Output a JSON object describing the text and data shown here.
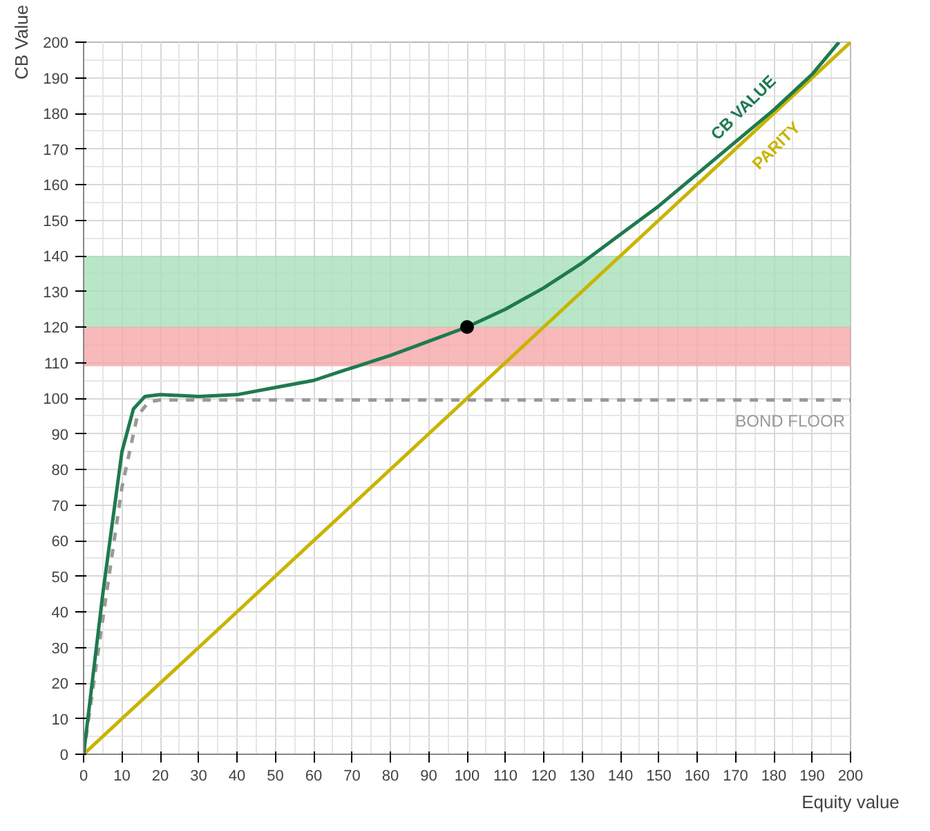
{
  "chart_data": {
    "type": "line",
    "xlabel": "Equity value",
    "ylabel": "CB Value",
    "xlim": [
      0,
      200
    ],
    "ylim": [
      0,
      200
    ],
    "xticks": [
      0,
      10,
      20,
      30,
      40,
      50,
      60,
      70,
      80,
      90,
      100,
      110,
      120,
      130,
      140,
      150,
      160,
      170,
      180,
      190,
      200
    ],
    "yticks": [
      0,
      10,
      20,
      30,
      40,
      50,
      60,
      70,
      80,
      90,
      100,
      110,
      120,
      130,
      140,
      150,
      160,
      170,
      180,
      190,
      200
    ],
    "grid": true,
    "series": [
      {
        "name": "PARITY",
        "color": "#c8b400",
        "x": [
          0,
          200
        ],
        "values": [
          0,
          200
        ]
      },
      {
        "name": "BOND FLOOR",
        "color": "#999999",
        "line_style": "dashed",
        "x": [
          0,
          5,
          10,
          14,
          17,
          20,
          200
        ],
        "values": [
          0,
          38,
          75,
          95,
          99,
          99.5,
          99.5
        ]
      },
      {
        "name": "CB VALUE",
        "color": "#1e7a4f",
        "x": [
          0,
          5,
          10,
          13,
          16,
          20,
          30,
          40,
          50,
          60,
          67,
          80,
          90,
          100,
          110,
          120,
          130,
          140,
          150,
          160,
          170,
          180,
          190,
          197
        ],
        "values": [
          0,
          45,
          85,
          97,
          100.5,
          101,
          100.5,
          101,
          103,
          105,
          107.5,
          112,
          116,
          120,
          125,
          131,
          138,
          146,
          154,
          163,
          172,
          181,
          191,
          200
        ]
      },
      {
        "type": "scatter",
        "color": "#000000",
        "x": [
          100
        ],
        "values": [
          120
        ]
      }
    ],
    "bands": [
      {
        "axis": "y",
        "from": 120,
        "to": 140,
        "color": "#a8e0b8"
      },
      {
        "axis": "y",
        "from": 109,
        "to": 120,
        "color": "#f5a8a8"
      }
    ]
  }
}
